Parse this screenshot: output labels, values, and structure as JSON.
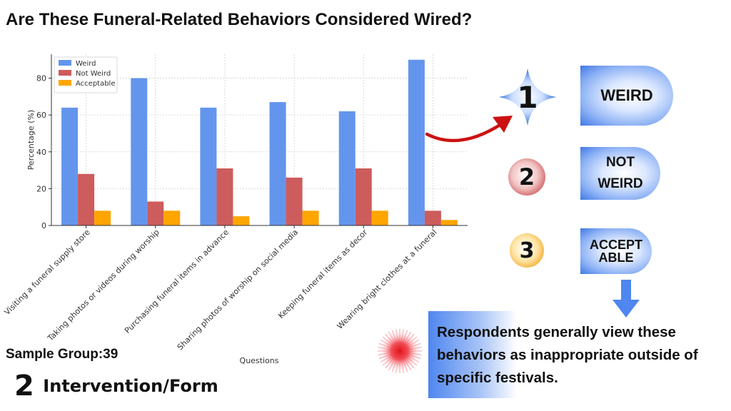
{
  "header": {
    "title": "Are These Funeral-Related Behaviors Considered Wired?"
  },
  "chart_data": {
    "type": "bar",
    "categories": [
      "Visiting a funeral supply store",
      "Taking photos or videos during worship",
      "Purchasing funeral items in advance",
      "Sharing photos of worship on social media",
      "Keeping funeral items as decor",
      "Wearing bright clothes at a funeral"
    ],
    "series": [
      {
        "name": "Weird",
        "color": "#6495ed",
        "values": [
          64,
          80,
          64,
          67,
          62,
          90
        ]
      },
      {
        "name": "Not Weird",
        "color": "#cd5c5c",
        "values": [
          28,
          13,
          31,
          26,
          31,
          8
        ]
      },
      {
        "name": "Acceptable",
        "color": "#ffa500",
        "values": [
          8,
          8,
          5,
          8,
          8,
          3
        ]
      }
    ],
    "xlabel": "Questions",
    "ylabel": "Percentage (%)",
    "ylim": [
      0,
      93
    ],
    "yticks": [
      0,
      20,
      40,
      60,
      80
    ],
    "grid": true,
    "legend_position": "top-left"
  },
  "footer": {
    "sample_group": "Sample Group:39",
    "intervention_number": "2",
    "intervention_label": "Intervention/Form"
  },
  "options": [
    {
      "number": "1",
      "label_lines": [
        "WEIRD"
      ]
    },
    {
      "number": "2",
      "label_lines": [
        "NOT",
        "WEIRD"
      ]
    },
    {
      "number": "3",
      "label_lines": [
        "ACCEPT",
        "ABLE"
      ]
    }
  ],
  "summary": {
    "text": "Respondents generally view these behaviors as inappropriate outside of specific festivals."
  },
  "colors": {
    "arrow_red": "#cc1111",
    "arrow_blue": "#4f86ef",
    "pill_blue": "#3f78e6"
  }
}
